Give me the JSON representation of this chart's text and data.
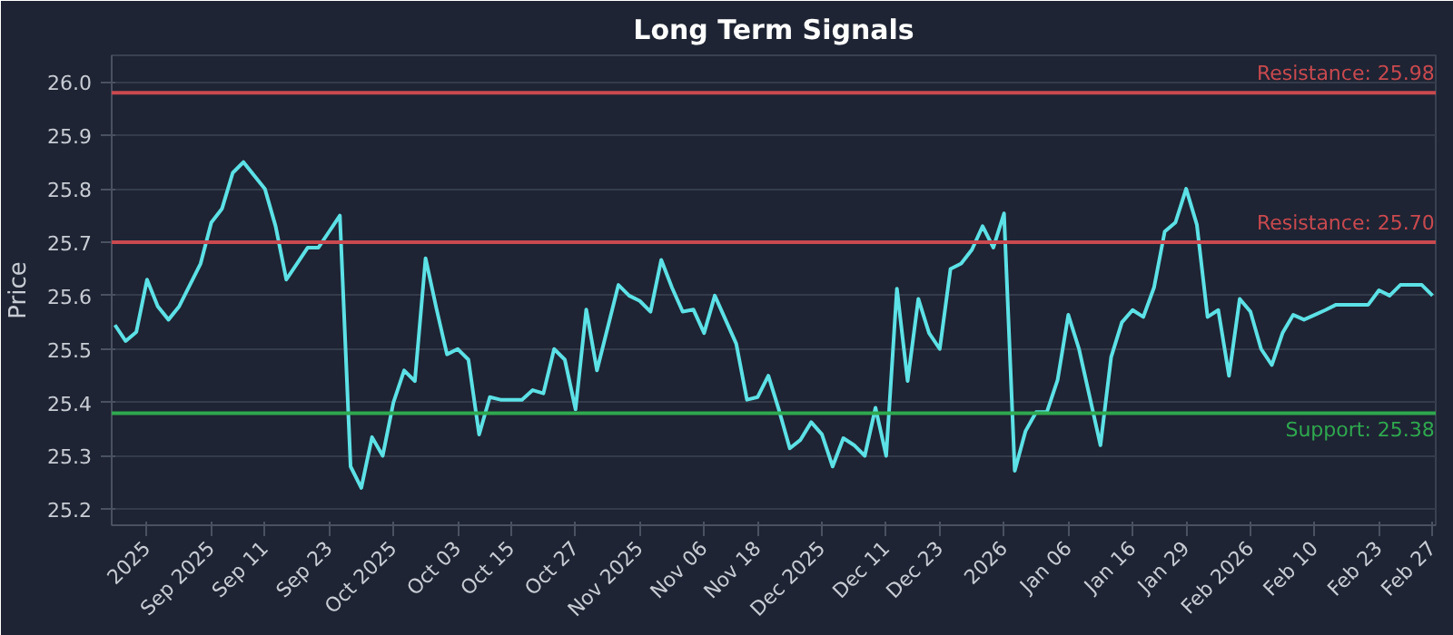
{
  "chart_data": {
    "type": "line",
    "title": "Long Term Signals",
    "ylabel": "Price",
    "categories": [
      null,
      null,
      null,
      "2025",
      null,
      null,
      null,
      null,
      null,
      "Sep 2025",
      null,
      null,
      null,
      null,
      "Sep 11",
      null,
      null,
      null,
      null,
      null,
      "Sep 23",
      null,
      null,
      null,
      null,
      null,
      "Oct 2025",
      null,
      null,
      null,
      null,
      null,
      "Oct 03",
      null,
      null,
      null,
      null,
      "Oct 15",
      null,
      null,
      null,
      null,
      null,
      "Oct 27",
      null,
      null,
      null,
      null,
      null,
      "Nov 2025",
      null,
      null,
      null,
      null,
      null,
      "Nov 06",
      null,
      null,
      null,
      null,
      "Nov 18",
      null,
      null,
      null,
      null,
      null,
      "Dec 2025",
      null,
      null,
      null,
      null,
      null,
      "Dec 11",
      null,
      null,
      null,
      null,
      "Dec 23",
      null,
      null,
      null,
      null,
      null,
      "2026",
      null,
      null,
      null,
      null,
      null,
      "Jan 06",
      null,
      null,
      null,
      null,
      null,
      "Jan 16",
      null,
      null,
      null,
      null,
      "Jan 29",
      null,
      null,
      null,
      null,
      null,
      "Feb 2026",
      null,
      null,
      null,
      null,
      null,
      "Feb 10",
      null,
      null,
      null,
      null,
      null,
      "Feb 23",
      null,
      null,
      null,
      null,
      "Feb 27"
    ],
    "series": [
      {
        "color": "#5ce1e6",
        "values": [
          25.545,
          25.515,
          25.532,
          25.63,
          25.58,
          25.555,
          25.58,
          25.62,
          25.66,
          25.737,
          25.763,
          25.83,
          25.85,
          25.825,
          25.8,
          25.73,
          25.63,
          25.66,
          25.69,
          25.69,
          25.72,
          25.75,
          25.28,
          25.24,
          25.335,
          25.3,
          25.4,
          25.46,
          25.44,
          25.67,
          25.577,
          25.49,
          25.5,
          25.48,
          25.34,
          25.41,
          25.405,
          25.405,
          25.405,
          25.423,
          25.417,
          25.5,
          25.48,
          25.387,
          25.574,
          25.46,
          25.54,
          25.62,
          25.6,
          25.59,
          25.57,
          25.667,
          25.615,
          25.57,
          25.574,
          25.53,
          25.6,
          25.555,
          25.51,
          25.405,
          25.41,
          25.45,
          25.385,
          25.314,
          25.33,
          25.363,
          25.34,
          25.28,
          25.333,
          25.32,
          25.3,
          25.39,
          25.3,
          25.613,
          25.44,
          25.594,
          25.53,
          25.5,
          25.65,
          25.66,
          25.686,
          25.73,
          25.69,
          25.754,
          25.272,
          25.346,
          25.382,
          25.382,
          25.442,
          25.564,
          25.5,
          25.41,
          25.32,
          25.485,
          25.55,
          25.573,
          25.56,
          25.615,
          25.72,
          25.737,
          25.8,
          25.733,
          25.56,
          25.573,
          25.45,
          25.594,
          25.57,
          25.5,
          25.47,
          25.53,
          25.564,
          25.555,
          25.564,
          25.573,
          25.583,
          25.583,
          25.583,
          25.583,
          25.61,
          25.6,
          25.62,
          25.62,
          25.62,
          25.6
        ]
      }
    ],
    "ylim": [
      25.17,
      26.05
    ],
    "yticks": [
      25.2,
      25.3,
      25.4,
      25.5,
      25.6,
      25.7,
      25.8,
      25.9,
      {
        "value": 26,
        "label": "26.0"
      }
    ],
    "ref_lines": [
      {
        "axis": "y",
        "value": 25.98,
        "label": "Resistance: 25.98",
        "color": "#c9494f"
      },
      {
        "axis": "y",
        "value": 25.7,
        "label": "Resistance: 25.70",
        "color": "#c9494f"
      },
      {
        "axis": "y",
        "value": 25.38,
        "label": "Support: 25.38",
        "color": "#2fa84f"
      }
    ],
    "grid": "y",
    "marker": "none",
    "line_style": "solid"
  }
}
